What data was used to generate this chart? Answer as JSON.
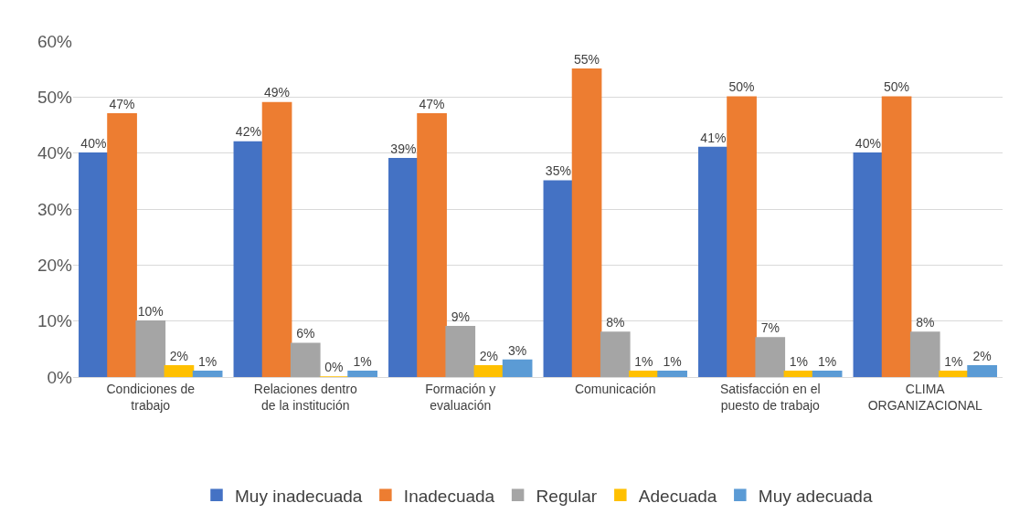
{
  "chart_data": {
    "type": "bar",
    "categories": [
      "Condiciones de trabajo",
      "Relaciones dentro de la institución",
      "Formación y evaluación",
      "Comunicación",
      "Satisfacción en el puesto de trabajo",
      "CLIMA ORGANIZACIONAL"
    ],
    "series": [
      {
        "name": "Muy inadecuada",
        "color": "#4472c4",
        "values": [
          40,
          42,
          39,
          35,
          41,
          40
        ],
        "value_labels": [
          "40%",
          "42%",
          "39%",
          "35%",
          "41%",
          "40%"
        ]
      },
      {
        "name": "Inadecuada",
        "color": "#ed7d31",
        "values": [
          47,
          49,
          47,
          55,
          50,
          50
        ],
        "value_labels": [
          "47%",
          "49%",
          "47%",
          "55%",
          "50%",
          "50%"
        ]
      },
      {
        "name": "Regular",
        "color": "#a5a5a5",
        "values": [
          10,
          6,
          9,
          8,
          7,
          8
        ],
        "value_labels": [
          "10%",
          "6%",
          "9%",
          "8%",
          "7%",
          "8%"
        ]
      },
      {
        "name": "Adecuada",
        "color": "#ffc000",
        "values": [
          2,
          0,
          2,
          1,
          1,
          1
        ],
        "value_labels": [
          "2%",
          "0%",
          "2%",
          "1%",
          "1%",
          "1%"
        ]
      },
      {
        "name": "Muy adecuada",
        "color": "#5b9bd5",
        "values": [
          1,
          1,
          3,
          1,
          1,
          2
        ],
        "value_labels": [
          "1%",
          "1%",
          "3%",
          "1%",
          "1%",
          "2%"
        ]
      }
    ],
    "ylim": [
      0,
      60
    ],
    "yticks": [
      {
        "value": 0,
        "label": "0%"
      },
      {
        "value": 10,
        "label": "10%"
      },
      {
        "value": 20,
        "label": "20%"
      },
      {
        "value": 30,
        "label": "30%"
      },
      {
        "value": 40,
        "label": "40%"
      },
      {
        "value": 50,
        "label": "50%"
      },
      {
        "value": 60,
        "label": "60%"
      }
    ],
    "grid": "y",
    "legend": "bottom"
  }
}
